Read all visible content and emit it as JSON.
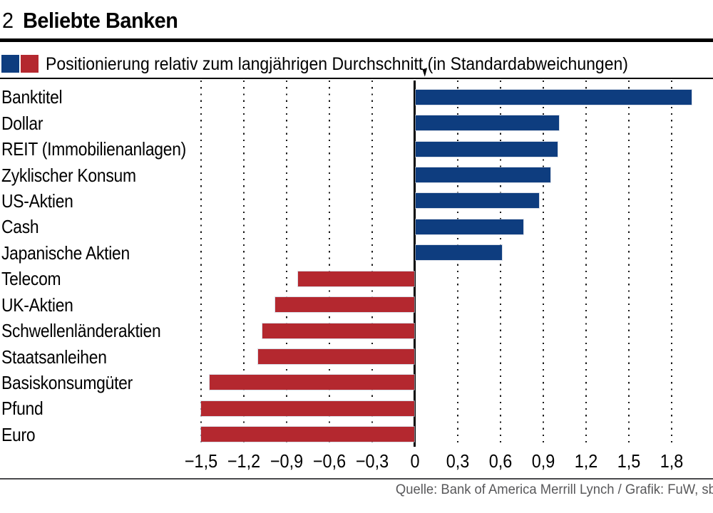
{
  "header": {
    "index": "2",
    "title": "Beliebte Banken"
  },
  "legend": {
    "subtitle": "Positionierung relativ zum langjährigen Durchschnitt (in Standardabweichungen)"
  },
  "chart_data": {
    "type": "bar",
    "orientation": "horizontal",
    "title": "Beliebte Banken",
    "subtitle": "Positionierung relativ zum langjährigen Durchschnitt (in Standardabweichungen)",
    "categories": [
      "Banktitel",
      "Dollar",
      "REIT (Immobilienanlagen)",
      "Zyklischer Konsum",
      "US-Aktien",
      "Cash",
      "Japanische Aktien",
      "Telecom",
      "UK-Aktien",
      "Schwellenländeraktien",
      "Staatsanleihen",
      "Basiskonsumgüter",
      "Pfund",
      "Euro"
    ],
    "values": [
      1.94,
      1.01,
      1.0,
      0.95,
      0.87,
      0.76,
      0.61,
      -0.82,
      -0.98,
      -1.07,
      -1.1,
      -1.44,
      -1.5,
      -1.5
    ],
    "xlim": [
      -1.5,
      2.1
    ],
    "xticks": [
      {
        "value": -1.5,
        "label": "−1,5"
      },
      {
        "value": -1.2,
        "label": "−1,2"
      },
      {
        "value": -0.9,
        "label": "−0,9"
      },
      {
        "value": -0.6,
        "label": "−0,6"
      },
      {
        "value": -0.3,
        "label": "−0,3"
      },
      {
        "value": 0,
        "label": "0"
      },
      {
        "value": 0.3,
        "label": "0,3"
      },
      {
        "value": 0.6,
        "label": "0,6"
      },
      {
        "value": 0.9,
        "label": "0,9"
      },
      {
        "value": 1.2,
        "label": "1,2"
      },
      {
        "value": 1.5,
        "label": "1,5"
      },
      {
        "value": 1.8,
        "label": "1,8"
      }
    ],
    "extra_gridline_values": [
      2.1
    ],
    "grid": "dotted-vertical",
    "positive_color": "#0e3d7f",
    "negative_color": "#b4282f",
    "grid_color": "#1a1a1a",
    "legend_position": "top-left"
  },
  "footer": {
    "source": "Quelle: Bank of America Merrill Lynch / Grafik: FuW, sb"
  }
}
